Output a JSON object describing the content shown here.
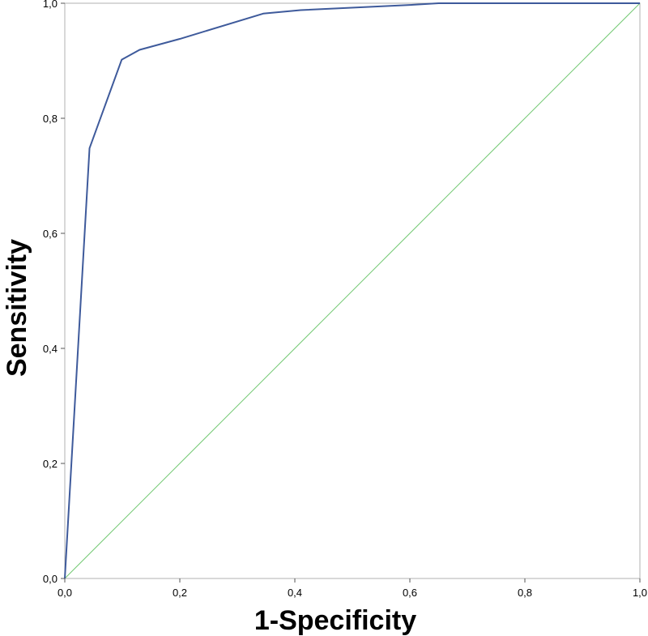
{
  "chart_data": {
    "type": "line",
    "title": "",
    "xlabel": "1-Specificity",
    "ylabel": "Sensitivity",
    "xlim": [
      0,
      1
    ],
    "ylim": [
      0,
      1
    ],
    "grid": false,
    "x_ticks": [
      "0,0",
      "0,2",
      "0,4",
      "0,6",
      "0,8",
      "1,0"
    ],
    "y_ticks": [
      "0,0",
      "0,2",
      "0,4",
      "0,6",
      "0,8",
      "1,0"
    ],
    "series": [
      {
        "color": "#3e5a9b",
        "points": [
          [
            0.0,
            0.0
          ],
          [
            0.043,
            0.748
          ],
          [
            0.099,
            0.902
          ],
          [
            0.13,
            0.919
          ],
          [
            0.2,
            0.938
          ],
          [
            0.345,
            0.982
          ],
          [
            0.41,
            0.988
          ],
          [
            0.6,
            0.997
          ],
          [
            0.65,
            1.0
          ],
          [
            1.0,
            1.0
          ]
        ]
      },
      {
        "color": "#73c973",
        "points": [
          [
            0.0,
            0.0
          ],
          [
            1.0,
            1.0
          ]
        ]
      }
    ]
  }
}
